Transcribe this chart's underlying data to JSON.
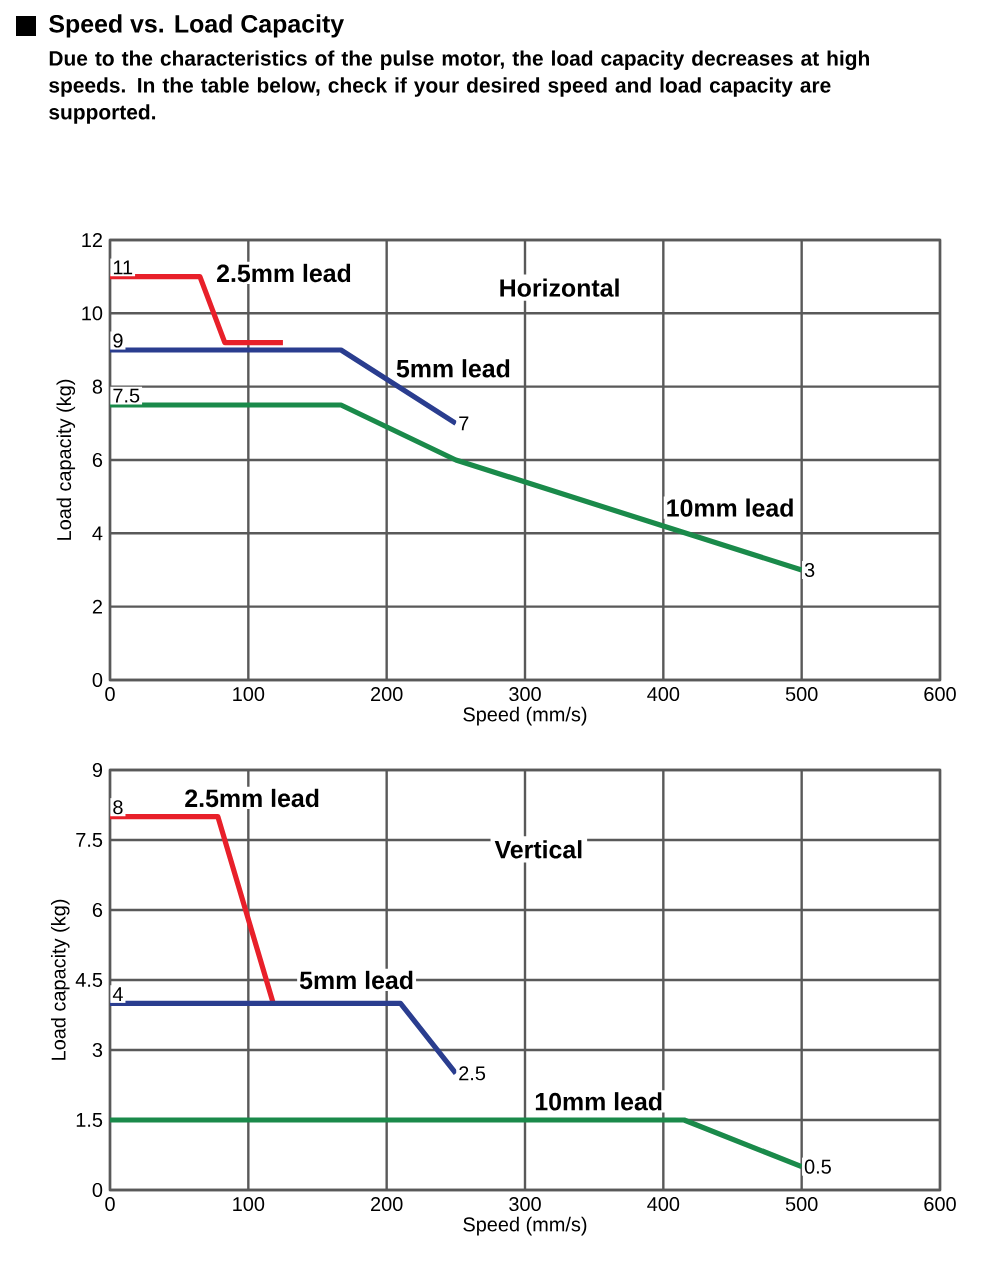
{
  "chart_data": [
    {
      "type": "line",
      "title": "Speed vs. Load Capacity",
      "subtitle": "Due to the characteristics of the pulse motor, the load capacity decreases at high speeds. In the table below, check if your desired speed and load capacity are supported.",
      "xlabel": "Speed (mm/s)",
      "ylabel": "Load capacity (kg)",
      "annotations": [
        "Horizontal"
      ],
      "xlim": [
        0,
        600
      ],
      "ylim": [
        0,
        12
      ],
      "xticks": [
        0,
        100,
        200,
        300,
        400,
        500,
        600
      ],
      "yticks": [
        0,
        2,
        4,
        6,
        8,
        10,
        12
      ],
      "grid": true,
      "line_style": "solid",
      "marker": "none",
      "series": [
        {
          "name": "2.5mm lead",
          "color": "#e8202a",
          "x": [
            0,
            65,
            83,
            125
          ],
          "values": [
            11,
            11,
            9.2,
            9.2
          ],
          "value_labels": [
            "11",
            null,
            null,
            null
          ]
        },
        {
          "name": "5mm lead",
          "color": "#2a3d8f",
          "x": [
            0,
            167,
            250
          ],
          "values": [
            9,
            9,
            7
          ],
          "value_labels": [
            "9",
            null,
            "7"
          ]
        },
        {
          "name": "10mm lead",
          "color": "#1a8a4a",
          "x": [
            0,
            167,
            250,
            400,
            500
          ],
          "values": [
            7.5,
            7.5,
            6,
            4.2,
            3
          ],
          "value_labels": [
            "7.5",
            null,
            null,
            null,
            "3"
          ]
        }
      ]
    },
    {
      "type": "line",
      "xlabel": "Speed (mm/s)",
      "ylabel": "Load capacity (kg)",
      "annotations": [
        "Vertical"
      ],
      "xlim": [
        0,
        600
      ],
      "ylim": [
        0,
        9
      ],
      "xticks": [
        0,
        100,
        200,
        300,
        400,
        500,
        600
      ],
      "yticks": [
        0,
        1.5,
        3,
        4.5,
        6,
        7.5,
        9
      ],
      "grid": true,
      "line_style": "solid",
      "marker": "none",
      "series": [
        {
          "name": "2.5mm lead",
          "color": "#e8202a",
          "x": [
            0,
            78,
            118
          ],
          "values": [
            8,
            8,
            4
          ],
          "value_labels": [
            "8",
            null,
            null
          ]
        },
        {
          "name": "5mm lead",
          "color": "#2a3d8f",
          "x": [
            0,
            210,
            250
          ],
          "values": [
            4,
            4,
            2.5
          ],
          "value_labels": [
            "4",
            null,
            "2.5"
          ]
        },
        {
          "name": "10mm lead",
          "color": "#1a8a4a",
          "x": [
            0,
            415,
            500
          ],
          "values": [
            1.5,
            1.5,
            0.5
          ],
          "value_labels": [
            null,
            null,
            "0.5"
          ]
        }
      ]
    }
  ]
}
